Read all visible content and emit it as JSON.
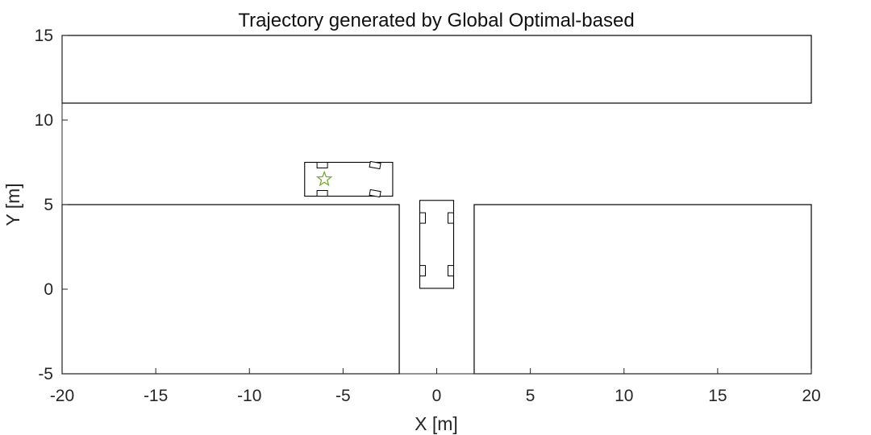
{
  "chart_data": {
    "type": "scatter",
    "title": "Trajectory generated by Global Optimal-based",
    "xlabel": "X [m]",
    "ylabel": "Y [m]",
    "xlim": [
      -20,
      20
    ],
    "ylim": [
      -5,
      15
    ],
    "xticks": [
      -20,
      -15,
      -10,
      -5,
      0,
      5,
      10,
      15,
      20
    ],
    "yticks": [
      -5,
      0,
      5,
      10,
      15
    ],
    "grid": false,
    "obstacles": [
      {
        "name": "upper-boundary",
        "x": [
          -20,
          20
        ],
        "y": [
          11,
          15
        ]
      },
      {
        "name": "lower-left-block",
        "x": [
          -20,
          -2
        ],
        "y": [
          -5,
          5
        ]
      },
      {
        "name": "lower-right-block",
        "x": [
          2,
          20
        ],
        "y": [
          -5,
          5
        ]
      }
    ],
    "vehicles": [
      {
        "name": "start-vehicle",
        "center": [
          -4.7,
          6.5
        ],
        "length": 4.7,
        "width": 2.0,
        "heading_deg": 0,
        "front_steer_deg": 10
      },
      {
        "name": "goal-vehicle",
        "center": [
          0,
          2.65
        ],
        "length": 4.7,
        "width": 2.0,
        "heading_deg": -90,
        "front_steer_deg": 0
      }
    ],
    "markers": [
      {
        "name": "goal-marker",
        "shape": "star",
        "x": -6.0,
        "y": 6.5,
        "color": "#77ac30"
      }
    ],
    "colors": {
      "line": "#000000",
      "axis": "#262626",
      "marker": "#77ac30"
    }
  }
}
